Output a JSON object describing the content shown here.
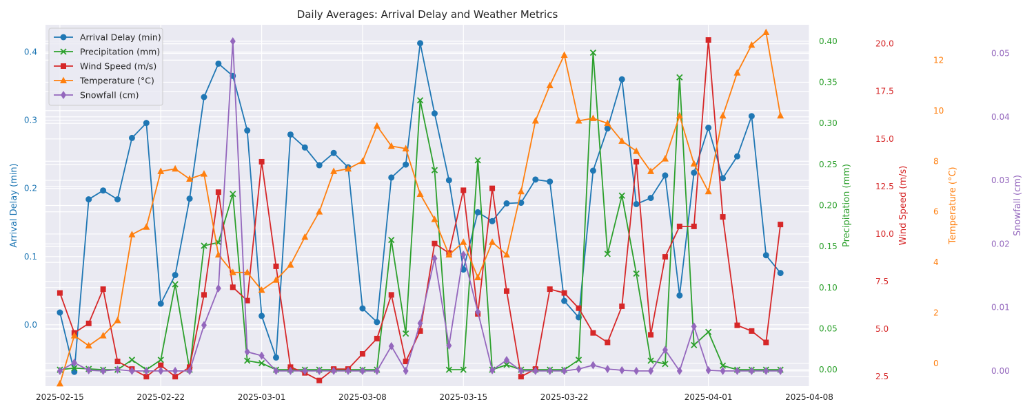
{
  "chart_data": {
    "type": "line",
    "title": "Daily Averages: Arrival Delay and Weather Metrics",
    "x": [
      "2025-02-15",
      "2025-02-16",
      "2025-02-17",
      "2025-02-18",
      "2025-02-19",
      "2025-02-20",
      "2025-02-21",
      "2025-02-22",
      "2025-02-23",
      "2025-02-24",
      "2025-02-25",
      "2025-02-26",
      "2025-02-27",
      "2025-02-28",
      "2025-03-01",
      "2025-03-02",
      "2025-03-03",
      "2025-03-04",
      "2025-03-05",
      "2025-03-06",
      "2025-03-07",
      "2025-03-08",
      "2025-03-09",
      "2025-03-10",
      "2025-03-11",
      "2025-03-12",
      "2025-03-13",
      "2025-03-14",
      "2025-03-15",
      "2025-03-16",
      "2025-03-17",
      "2025-03-18",
      "2025-03-19",
      "2025-03-20",
      "2025-03-21",
      "2025-03-22",
      "2025-03-23",
      "2025-03-24",
      "2025-03-25",
      "2025-03-26",
      "2025-03-27",
      "2025-03-28",
      "2025-03-29",
      "2025-03-30",
      "2025-03-31",
      "2025-04-01",
      "2025-04-02",
      "2025-04-03",
      "2025-04-04",
      "2025-04-05",
      "2025-04-06"
    ],
    "x_ticks": [
      "2025-02-15",
      "2025-02-22",
      "2025-03-01",
      "2025-03-08",
      "2025-03-15",
      "2025-03-22",
      "2025-04-01",
      "2025-04-08"
    ],
    "x_range": [
      "2025-02-14",
      "2025-04-08"
    ],
    "grid": true,
    "legend_position": "top-left",
    "series": [
      {
        "name": "Arrival Delay (min)",
        "axis": "Arrival Delay (min)",
        "color": "#1f77b4",
        "marker": "circle",
        "range": [
          -0.09,
          0.44
        ],
        "ticks": [
          0.0,
          0.1,
          0.2,
          0.3,
          0.4
        ],
        "tick_labels": [
          "0.0",
          "0.1",
          "0.2",
          "0.3",
          "0.4"
        ],
        "values": [
          0.018,
          -0.069,
          0.184,
          0.197,
          0.184,
          0.274,
          0.296,
          0.031,
          0.073,
          0.185,
          0.334,
          0.383,
          0.365,
          0.285,
          0.013,
          -0.048,
          0.279,
          0.26,
          0.234,
          0.252,
          0.231,
          0.024,
          0.004,
          0.216,
          0.235,
          0.413,
          0.31,
          0.212,
          0.081,
          0.165,
          0.152,
          0.178,
          0.179,
          0.213,
          0.21,
          0.035,
          0.011,
          0.226,
          0.288,
          0.36,
          0.177,
          0.186,
          0.219,
          0.043,
          0.223,
          0.289,
          0.215,
          0.247,
          0.306,
          0.102,
          0.076
        ]
      },
      {
        "name": "Precipitation (mm)",
        "axis": "Precipitation (mm)",
        "color": "#2ca02c",
        "marker": "x",
        "range": [
          -0.02,
          0.42
        ],
        "ticks": [
          0.0,
          0.05,
          0.1,
          0.15,
          0.2,
          0.25,
          0.3,
          0.35,
          0.4
        ],
        "tick_labels": [
          "0.00",
          "0.05",
          "0.10",
          "0.15",
          "0.20",
          "0.25",
          "0.30",
          "0.35",
          "0.40"
        ],
        "values": [
          0.0,
          0.002,
          0.001,
          0.0,
          0.0,
          0.012,
          0.0,
          0.012,
          0.104,
          0.0,
          0.151,
          0.155,
          0.214,
          0.011,
          0.008,
          0.0,
          0.0,
          0.0,
          0.0,
          0.0,
          0.0,
          0.0,
          0.0,
          0.158,
          0.044,
          0.328,
          0.243,
          0.0,
          0.0,
          0.255,
          0.0,
          0.006,
          0.0,
          0.0,
          0.0,
          0.0,
          0.012,
          0.386,
          0.141,
          0.212,
          0.117,
          0.011,
          0.007,
          0.356,
          0.03,
          0.046,
          0.005,
          0.0,
          0.0,
          0.0,
          0.0
        ]
      },
      {
        "name": "Wind Speed (m/s)",
        "axis": "Wind Speed (m/s)",
        "color": "#d62728",
        "marker": "square",
        "range": [
          2.0,
          21.0
        ],
        "ticks": [
          2.5,
          5.0,
          7.5,
          10.0,
          12.5,
          15.0,
          17.5,
          20.0
        ],
        "tick_labels": [
          "2.5",
          "5.0",
          "7.5",
          "10.0",
          "12.5",
          "15.0",
          "17.5",
          "20.0"
        ],
        "values": [
          6.9,
          4.8,
          5.3,
          7.1,
          3.3,
          2.9,
          2.5,
          3.1,
          2.5,
          3.0,
          6.8,
          12.2,
          7.2,
          6.5,
          13.8,
          8.3,
          3.0,
          2.7,
          2.3,
          2.9,
          2.9,
          3.7,
          4.5,
          6.8,
          3.3,
          4.9,
          9.5,
          9.0,
          12.3,
          5.8,
          12.4,
          7.0,
          2.5,
          2.9,
          7.1,
          6.9,
          6.1,
          4.8,
          4.3,
          6.2,
          13.8,
          4.7,
          8.8,
          10.4,
          10.4,
          20.2,
          10.9,
          5.2,
          4.9,
          4.3,
          10.5
        ]
      },
      {
        "name": "Temperature (°C)",
        "axis": "Temperature (°C)",
        "color": "#ff7f0e",
        "marker": "triangle",
        "range": [
          -0.9,
          13.4
        ],
        "ticks": [
          0,
          2,
          4,
          6,
          8,
          10,
          12
        ],
        "tick_labels": [
          "0",
          "2",
          "4",
          "6",
          "8",
          "10",
          "12"
        ],
        "values": [
          -0.8,
          1.1,
          0.7,
          1.1,
          1.7,
          5.1,
          5.4,
          7.6,
          7.7,
          7.3,
          7.5,
          4.3,
          3.6,
          3.6,
          2.9,
          3.3,
          3.9,
          5.0,
          6.0,
          7.6,
          7.7,
          8.0,
          9.4,
          8.6,
          8.5,
          6.7,
          5.7,
          4.3,
          4.8,
          3.4,
          4.8,
          4.3,
          6.8,
          9.6,
          11.0,
          12.2,
          9.6,
          9.7,
          9.5,
          8.8,
          8.4,
          7.6,
          8.1,
          9.8,
          7.9,
          6.8,
          9.8,
          11.5,
          12.6,
          13.1,
          9.8
        ]
      },
      {
        "name": "Snowfall (cm)",
        "axis": "Snowfall (cm)",
        "color": "#9467bd",
        "marker": "diamond",
        "range": [
          -0.0024,
          0.0545
        ],
        "ticks": [
          0.0,
          0.01,
          0.02,
          0.03,
          0.04,
          0.05
        ],
        "tick_labels": [
          "0.00",
          "0.01",
          "0.02",
          "0.03",
          "0.04",
          "0.05"
        ],
        "values": [
          0.0,
          0.0013,
          0.0001,
          0.0,
          0.0002,
          0.0,
          0.0,
          0.0,
          0.0,
          0.0,
          0.0072,
          0.013,
          0.0519,
          0.003,
          0.0024,
          0.0,
          0.0,
          0.0,
          0.0,
          0.0,
          0.0,
          0.0,
          0.0,
          0.0039,
          0.0,
          0.0075,
          0.0177,
          0.004,
          0.0183,
          0.0093,
          0.0001,
          0.0017,
          0.0,
          0.0,
          0.0,
          0.0,
          0.0003,
          0.0009,
          0.0003,
          0.0001,
          0.0,
          0.0,
          0.0033,
          0.0,
          0.007,
          0.0001,
          0.0,
          0.0,
          0.0,
          0.0,
          0.0
        ]
      }
    ]
  }
}
